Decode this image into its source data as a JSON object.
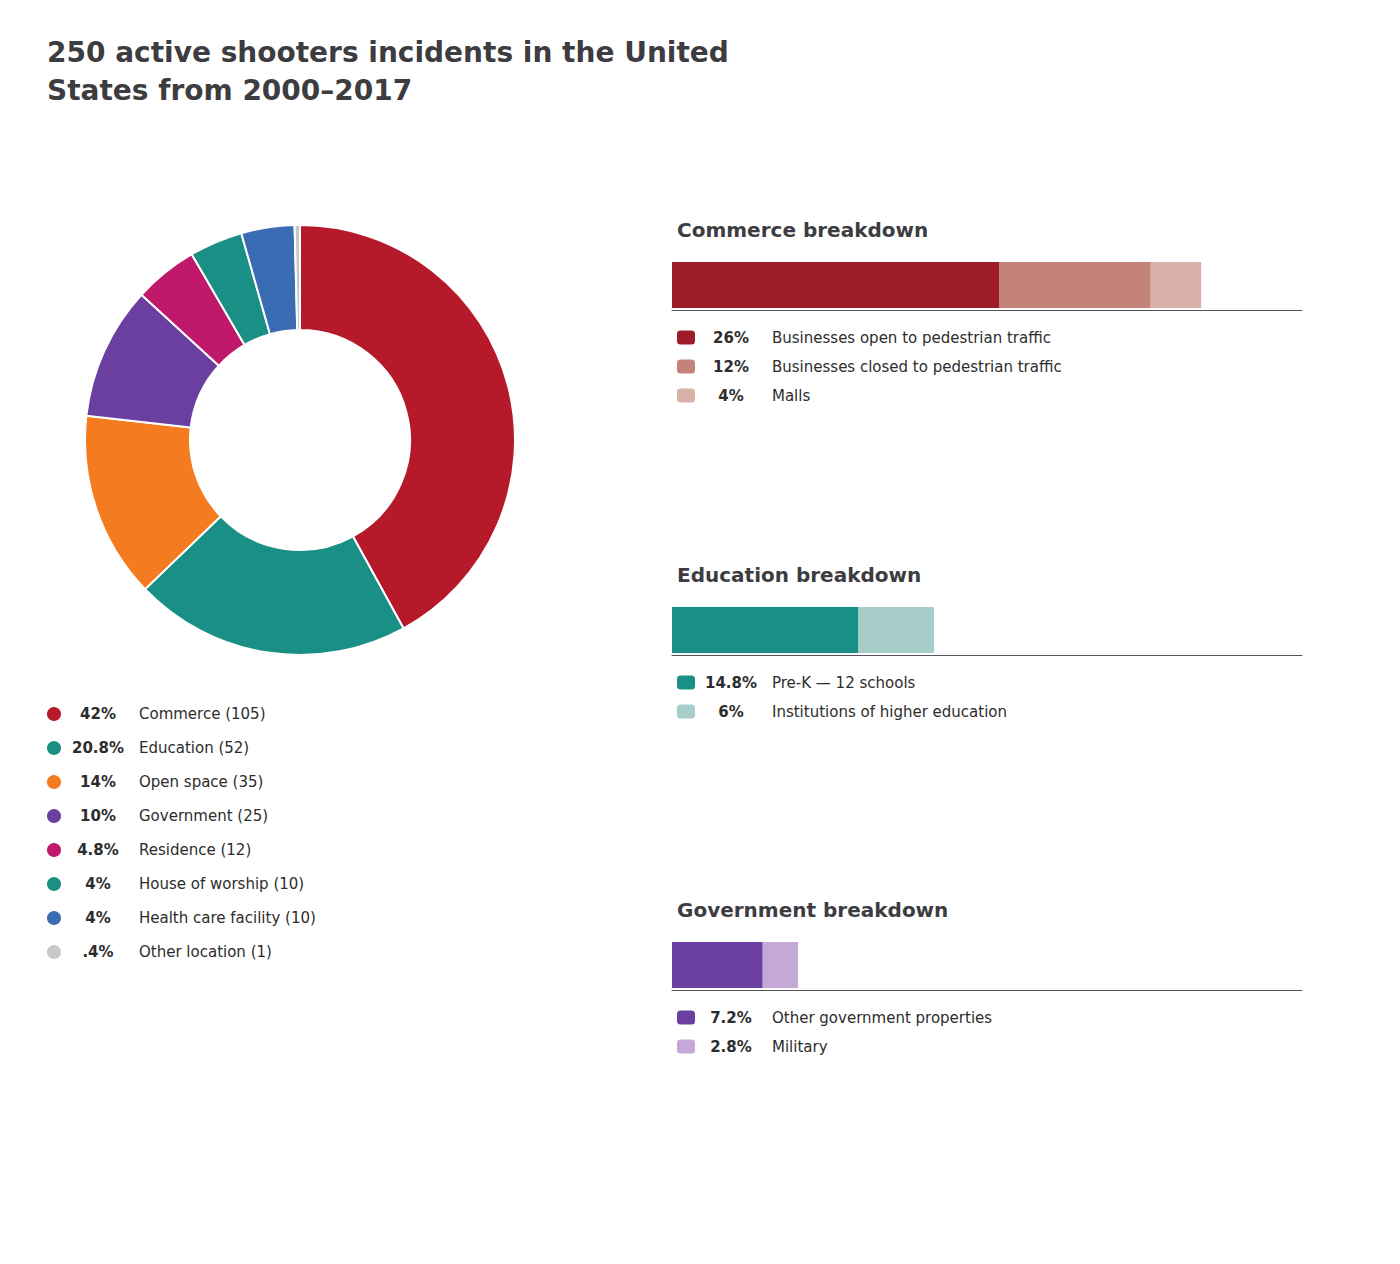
{
  "chart_data": [
    {
      "type": "pie",
      "title": "250 active shooters incidents in the United\nStates from 2000–2017",
      "categories": [
        "Commerce (105)",
        "Education (52)",
        "Open space (35)",
        "Government (25)",
        "Residence (12)",
        "House of worship (10)",
        "Health care facility (10)",
        "Other location (1)"
      ],
      "values": [
        42,
        20.8,
        14,
        10,
        4.8,
        4,
        4,
        0.4
      ],
      "value_labels": [
        "42%",
        "20.8%",
        "14%",
        "10%",
        "4.8%",
        "4%",
        "4%",
        ".4%"
      ],
      "colors": [
        "#b5192a",
        "#1a8f85",
        "#f47b20",
        "#6b3fa0",
        "#c0186a",
        "#1a8f85",
        "#3a6cb4",
        "#c8c8c8"
      ],
      "legend": "lower left"
    },
    {
      "type": "bar",
      "title": "Commerce breakdown",
      "orientation": "horizontal",
      "stacked": true,
      "series": [
        {
          "name": "Businesses open to pedestrian traffic",
          "color": "#9e1b2a",
          "values": [
            26
          ],
          "value_labels": [
            "26%"
          ]
        },
        {
          "name": "Businesses closed to pedestrian traffic",
          "color": "#c4837a",
          "values": [
            12
          ],
          "value_labels": [
            "12%"
          ]
        },
        {
          "name": "Malls",
          "color": "#d9b0aa",
          "values": [
            4
          ],
          "value_labels": [
            "4%"
          ]
        }
      ],
      "xlim": [
        0,
        50
      ],
      "tick_labels": false,
      "grid": false,
      "legend": "lower left"
    },
    {
      "type": "bar",
      "title": "Education breakdown",
      "orientation": "horizontal",
      "stacked": true,
      "series": [
        {
          "name": "Pre-K — 12 schools",
          "color": "#1a8f85",
          "values": [
            14.8
          ],
          "value_labels": [
            "14.8%"
          ]
        },
        {
          "name": "Institutions of higher education",
          "color": "#a8cec9",
          "values": [
            6
          ],
          "value_labels": [
            "6%"
          ]
        }
      ],
      "xlim": [
        0,
        50
      ],
      "tick_labels": false,
      "grid": false,
      "legend": "lower left"
    },
    {
      "type": "bar",
      "title": "Government breakdown",
      "orientation": "horizontal",
      "stacked": true,
      "series": [
        {
          "name": "Other government properties",
          "color": "#6b3fa0",
          "values": [
            7.2
          ],
          "value_labels": [
            "7.2%"
          ]
        },
        {
          "name": "Military",
          "color": "#c4a8d8",
          "values": [
            2.8
          ],
          "value_labels": [
            "2.8%"
          ]
        }
      ],
      "xlim": [
        0,
        50
      ],
      "tick_labels": false,
      "grid": false,
      "legend": "lower left"
    }
  ]
}
